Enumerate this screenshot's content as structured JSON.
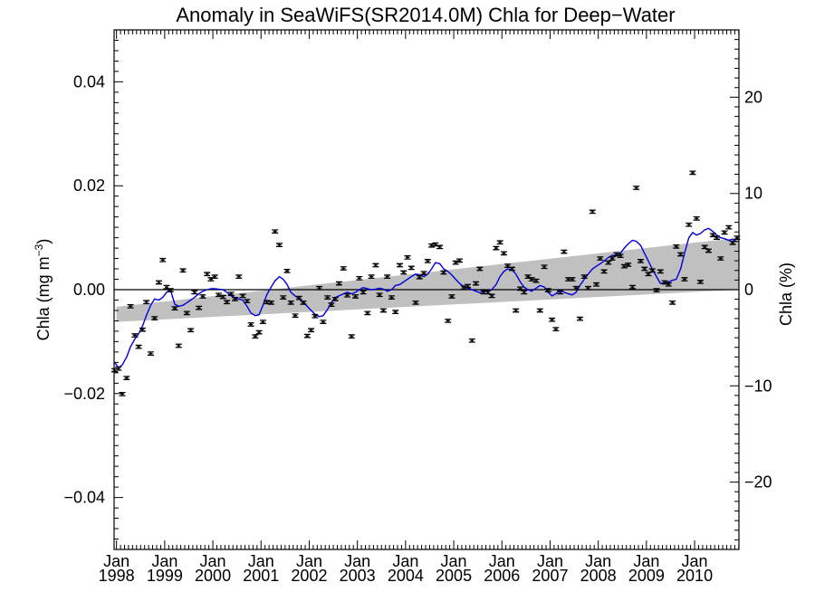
{
  "chart_data": {
    "type": "scatter",
    "title": "Anomaly in SeaWiFS(SR2014.0M) Chla for Deep−Water",
    "ylabel_left": "Chla (mg m",
    "ylabel_left_sup": "−3",
    "ylabel_left_close": ")",
    "ylabel_right": "Chla (%)",
    "xlim": [
      1997.95,
      2010.92
    ],
    "ylim": [
      -0.05,
      0.05
    ],
    "ylim_right": [
      -27,
      27
    ],
    "grid": false,
    "x_ticks": [
      {
        "month": "Jan",
        "year": "1998",
        "x": 1998.0
      },
      {
        "month": "Jan",
        "year": "1999",
        "x": 1999.0
      },
      {
        "month": "Jan",
        "year": "2000",
        "x": 2000.0
      },
      {
        "month": "Jan",
        "year": "2001",
        "x": 2001.0
      },
      {
        "month": "Jan",
        "year": "2002",
        "x": 2002.0
      },
      {
        "month": "Jan",
        "year": "2003",
        "x": 2003.0
      },
      {
        "month": "Jan",
        "year": "2004",
        "x": 2004.0
      },
      {
        "month": "Jan",
        "year": "2005",
        "x": 2005.0
      },
      {
        "month": "Jan",
        "year": "2006",
        "x": 2006.0
      },
      {
        "month": "Jan",
        "year": "2007",
        "x": 2007.0
      },
      {
        "month": "Jan",
        "year": "2008",
        "x": 2008.0
      },
      {
        "month": "Jan",
        "year": "2009",
        "x": 2009.0
      },
      {
        "month": "Jan",
        "year": "2010",
        "x": 2010.0
      }
    ],
    "y_ticks_left": [
      {
        "label": "0.04",
        "y": 0.04
      },
      {
        "label": "0.02",
        "y": 0.02
      },
      {
        "label": "0.00",
        "y": 0.0
      },
      {
        "label": "−0.02",
        "y": -0.02
      },
      {
        "label": "−0.04",
        "y": -0.04
      }
    ],
    "y_ticks_right": [
      {
        "label": "20",
        "y": 20
      },
      {
        "label": "10",
        "y": 10
      },
      {
        "label": "0",
        "y": 0
      },
      {
        "label": "−10",
        "y": -10
      },
      {
        "label": "−20",
        "y": -20
      }
    ],
    "colors": {
      "running_mean": "#0000dd",
      "trend_band": "#c0c0c0",
      "points": "#000000",
      "zero_line": "#000000"
    },
    "trend_band": {
      "x": [
        1998.0,
        2010.92
      ],
      "lower": [
        -0.0062,
        0.0
      ],
      "upper": [
        -0.0033,
        0.01
      ]
    },
    "error_bar_halfwidth": 0.0003,
    "points": {
      "x": [
        1997.96,
        1998.04,
        1998.12,
        1998.21,
        1998.29,
        1998.38,
        1998.46,
        1998.54,
        1998.62,
        1998.71,
        1998.79,
        1998.88,
        1998.96,
        1999.04,
        1999.12,
        1999.21,
        1999.29,
        1999.38,
        1999.46,
        1999.54,
        1999.62,
        1999.71,
        1999.79,
        1999.88,
        1999.96,
        2000.04,
        2000.12,
        2000.21,
        2000.29,
        2000.38,
        2000.46,
        2000.54,
        2000.62,
        2000.71,
        2000.79,
        2000.88,
        2000.96,
        2001.04,
        2001.12,
        2001.21,
        2001.29,
        2001.38,
        2001.46,
        2001.54,
        2001.62,
        2001.71,
        2001.79,
        2001.88,
        2001.96,
        2002.04,
        2002.12,
        2002.21,
        2002.29,
        2002.38,
        2002.46,
        2002.54,
        2002.62,
        2002.71,
        2002.79,
        2002.88,
        2002.96,
        2003.04,
        2003.12,
        2003.21,
        2003.29,
        2003.38,
        2003.46,
        2003.54,
        2003.62,
        2003.71,
        2003.79,
        2003.88,
        2003.96,
        2004.04,
        2004.12,
        2004.21,
        2004.29,
        2004.38,
        2004.46,
        2004.54,
        2004.62,
        2004.71,
        2004.79,
        2004.88,
        2004.96,
        2005.04,
        2005.12,
        2005.21,
        2005.29,
        2005.38,
        2005.46,
        2005.54,
        2005.62,
        2005.71,
        2005.79,
        2005.88,
        2005.96,
        2006.04,
        2006.12,
        2006.21,
        2006.29,
        2006.38,
        2006.46,
        2006.54,
        2006.62,
        2006.71,
        2006.79,
        2006.88,
        2006.96,
        2007.04,
        2007.12,
        2007.21,
        2007.29,
        2007.38,
        2007.46,
        2007.54,
        2007.62,
        2007.71,
        2007.79,
        2007.88,
        2007.96,
        2008.04,
        2008.12,
        2008.21,
        2008.29,
        2008.38,
        2008.46,
        2008.54,
        2008.62,
        2008.71,
        2008.79,
        2008.88,
        2008.96,
        2009.04,
        2009.12,
        2009.21,
        2009.29,
        2009.38,
        2009.46,
        2009.54,
        2009.62,
        2009.71,
        2009.79,
        2009.88,
        2009.96,
        2010.04,
        2010.12,
        2010.21,
        2010.29,
        2010.38,
        2010.46,
        2010.54,
        2010.62,
        2010.71,
        2010.79,
        2010.88
      ],
      "y": [
        -0.0155,
        -0.0152,
        -0.0201,
        -0.017,
        -0.0032,
        -0.0088,
        -0.011,
        -0.0077,
        -0.0024,
        -0.0123,
        -0.0055,
        0.0014,
        0.0057,
        0.0005,
        -0.0001,
        -0.0036,
        -0.0108,
        0.0037,
        -0.0045,
        -0.0078,
        -0.0005,
        -0.0035,
        -0.0013,
        0.003,
        0.002,
        0.0025,
        -0.001,
        -0.0014,
        -0.0024,
        -0.0008,
        -0.0018,
        0.0025,
        -0.0012,
        -0.0022,
        -0.0067,
        -0.009,
        -0.0082,
        -0.0062,
        -0.0024,
        -0.0025,
        0.0112,
        0.0086,
        -0.0015,
        0.0036,
        -0.0025,
        -0.005,
        -0.0016,
        -0.0025,
        -0.0089,
        -0.0078,
        -0.0051,
        0.0003,
        -0.0062,
        -0.0015,
        -0.0029,
        -0.0018,
        0.0012,
        0.0041,
        -0.0011,
        -0.009,
        -0.0013,
        0.0022,
        -0.0005,
        -0.0045,
        0.0025,
        0.0047,
        -0.001,
        -0.004,
        0.0025,
        -0.0015,
        -0.0043,
        0.0047,
        0.0033,
        0.0062,
        0.0042,
        -0.0025,
        0.0024,
        0.0032,
        0.0055,
        0.0085,
        0.0087,
        0.0082,
        0.0033,
        -0.006,
        -0.0013,
        0.0052,
        0.0056,
        0.0004,
        0.0007,
        -0.0098,
        0.0012,
        0.004,
        -0.0005,
        -0.0005,
        -0.0012,
        0.008,
        0.0091,
        0.007,
        0.0046,
        0.004,
        -0.004,
        0.0002,
        -0.0005,
        0.0025,
        0.002,
        0.0017,
        -0.004,
        0.0044,
        -0.0001,
        -0.0058,
        -0.0076,
        -0.0005,
        0.0073,
        0.002,
        0.002,
        0.0003,
        -0.0056,
        0.0025,
        0.0003,
        0.015,
        0.001,
        0.006,
        0.0035,
        0.0052,
        0.006,
        0.0068,
        0.0065,
        0.0045,
        0.0048,
        0.0005,
        0.0196,
        0.0055,
        0.004,
        0.003,
        0.0037,
        -0.0001,
        0.0035,
        0.0014,
        0.001,
        -0.0025,
        0.0083,
        0.0068,
        0.002,
        0.0125,
        0.0225,
        0.0137,
        0.0015,
        0.0082,
        0.0075,
        0.0105,
        0.01,
        0.006,
        0.011,
        0.012,
        0.009,
        0.01
      ]
    },
    "running_mean": {
      "x": [
        1997.96,
        1998.04,
        1998.12,
        1998.21,
        1998.29,
        1998.38,
        1998.46,
        1998.54,
        1998.62,
        1998.71,
        1998.79,
        1998.88,
        1998.96,
        1999.04,
        1999.12,
        1999.21,
        1999.29,
        1999.38,
        1999.46,
        1999.54,
        1999.62,
        1999.71,
        1999.79,
        1999.88,
        1999.96,
        2000.04,
        2000.12,
        2000.21,
        2000.29,
        2000.38,
        2000.46,
        2000.54,
        2000.62,
        2000.71,
        2000.79,
        2000.88,
        2000.96,
        2001.04,
        2001.12,
        2001.21,
        2001.29,
        2001.38,
        2001.46,
        2001.54,
        2001.62,
        2001.71,
        2001.79,
        2001.88,
        2001.96,
        2002.04,
        2002.12,
        2002.21,
        2002.29,
        2002.38,
        2002.46,
        2002.54,
        2002.62,
        2002.71,
        2002.79,
        2002.88,
        2002.96,
        2003.04,
        2003.12,
        2003.21,
        2003.29,
        2003.38,
        2003.46,
        2003.54,
        2003.62,
        2003.71,
        2003.79,
        2003.88,
        2003.96,
        2004.04,
        2004.12,
        2004.21,
        2004.29,
        2004.38,
        2004.46,
        2004.54,
        2004.62,
        2004.71,
        2004.79,
        2004.88,
        2004.96,
        2005.04,
        2005.12,
        2005.21,
        2005.29,
        2005.38,
        2005.46,
        2005.54,
        2005.62,
        2005.71,
        2005.79,
        2005.88,
        2005.96,
        2006.04,
        2006.12,
        2006.21,
        2006.29,
        2006.38,
        2006.46,
        2006.54,
        2006.62,
        2006.71,
        2006.79,
        2006.88,
        2006.96,
        2007.04,
        2007.12,
        2007.21,
        2007.29,
        2007.38,
        2007.46,
        2007.54,
        2007.62,
        2007.71,
        2007.79,
        2007.88,
        2007.96,
        2008.04,
        2008.12,
        2008.21,
        2008.29,
        2008.38,
        2008.46,
        2008.54,
        2008.62,
        2008.71,
        2008.79,
        2008.88,
        2008.96,
        2009.04,
        2009.12,
        2009.21,
        2009.29,
        2009.38,
        2009.46,
        2009.54,
        2009.62,
        2009.71,
        2009.79,
        2009.88,
        2009.96,
        2010.04,
        2010.12,
        2010.21,
        2010.29,
        2010.38,
        2010.46,
        2010.54,
        2010.62,
        2010.71,
        2010.79,
        2010.88
      ],
      "y": [
        -0.014,
        -0.015,
        -0.0145,
        -0.013,
        -0.011,
        -0.0095,
        -0.0085,
        -0.007,
        -0.005,
        -0.003,
        -0.0018,
        -0.002,
        -0.0015,
        -0.0005,
        0.0,
        -0.0028,
        -0.0032,
        -0.003,
        -0.0025,
        -0.002,
        -0.0015,
        -0.0008,
        -0.0003,
        0.0,
        0.0002,
        0.0002,
        0.0001,
        0.0,
        -0.0005,
        -0.0012,
        -0.0015,
        -0.0018,
        -0.002,
        -0.0032,
        -0.0045,
        -0.005,
        -0.0048,
        -0.003,
        -0.001,
        0.0005,
        0.0017,
        0.0025,
        0.002,
        0.001,
        -0.0005,
        -0.0012,
        -0.0018,
        -0.0025,
        -0.0032,
        -0.004,
        -0.0047,
        -0.0052,
        -0.005,
        -0.0038,
        -0.0025,
        -0.0015,
        -0.0012,
        -0.0008,
        -0.0005,
        -0.0008,
        -0.0005,
        0.0,
        0.0004,
        0.0002,
        0.0,
        0.0001,
        0.0003,
        0.0001,
        -0.0003,
        0.0,
        0.0008,
        0.001,
        0.0015,
        0.002,
        0.0025,
        0.003,
        0.0028,
        0.0025,
        0.003,
        0.004,
        0.0052,
        0.005,
        0.004,
        0.0035,
        0.0028,
        0.002,
        0.0012,
        0.0006,
        0.0003,
        0.0,
        -0.0003,
        -0.0006,
        -0.0004,
        -0.0002,
        0.0,
        0.001,
        0.0025,
        0.0035,
        0.004,
        0.0038,
        0.003,
        0.0015,
        0.0005,
        0.0,
        -0.0003,
        0.0003,
        0.0008,
        0.0005,
        -0.0005,
        -0.0012,
        -0.0008,
        0.0,
        -0.0005,
        -0.0008,
        -0.001,
        -0.0005,
        0.0008,
        0.002,
        0.003,
        0.004,
        0.0045,
        0.005,
        0.0055,
        0.0062,
        0.0066,
        0.0066,
        0.007,
        0.008,
        0.0088,
        0.0095,
        0.0093,
        0.0085,
        0.007,
        0.0055,
        0.004,
        0.0025,
        0.0012,
        0.0013,
        0.0015,
        0.0018,
        0.002,
        0.004,
        0.007,
        0.01,
        0.011,
        0.0105,
        0.0108,
        0.0115,
        0.0118,
        0.0112,
        0.0105,
        0.01,
        0.0098,
        0.0095,
        0.0097,
        0.0092
      ]
    }
  }
}
